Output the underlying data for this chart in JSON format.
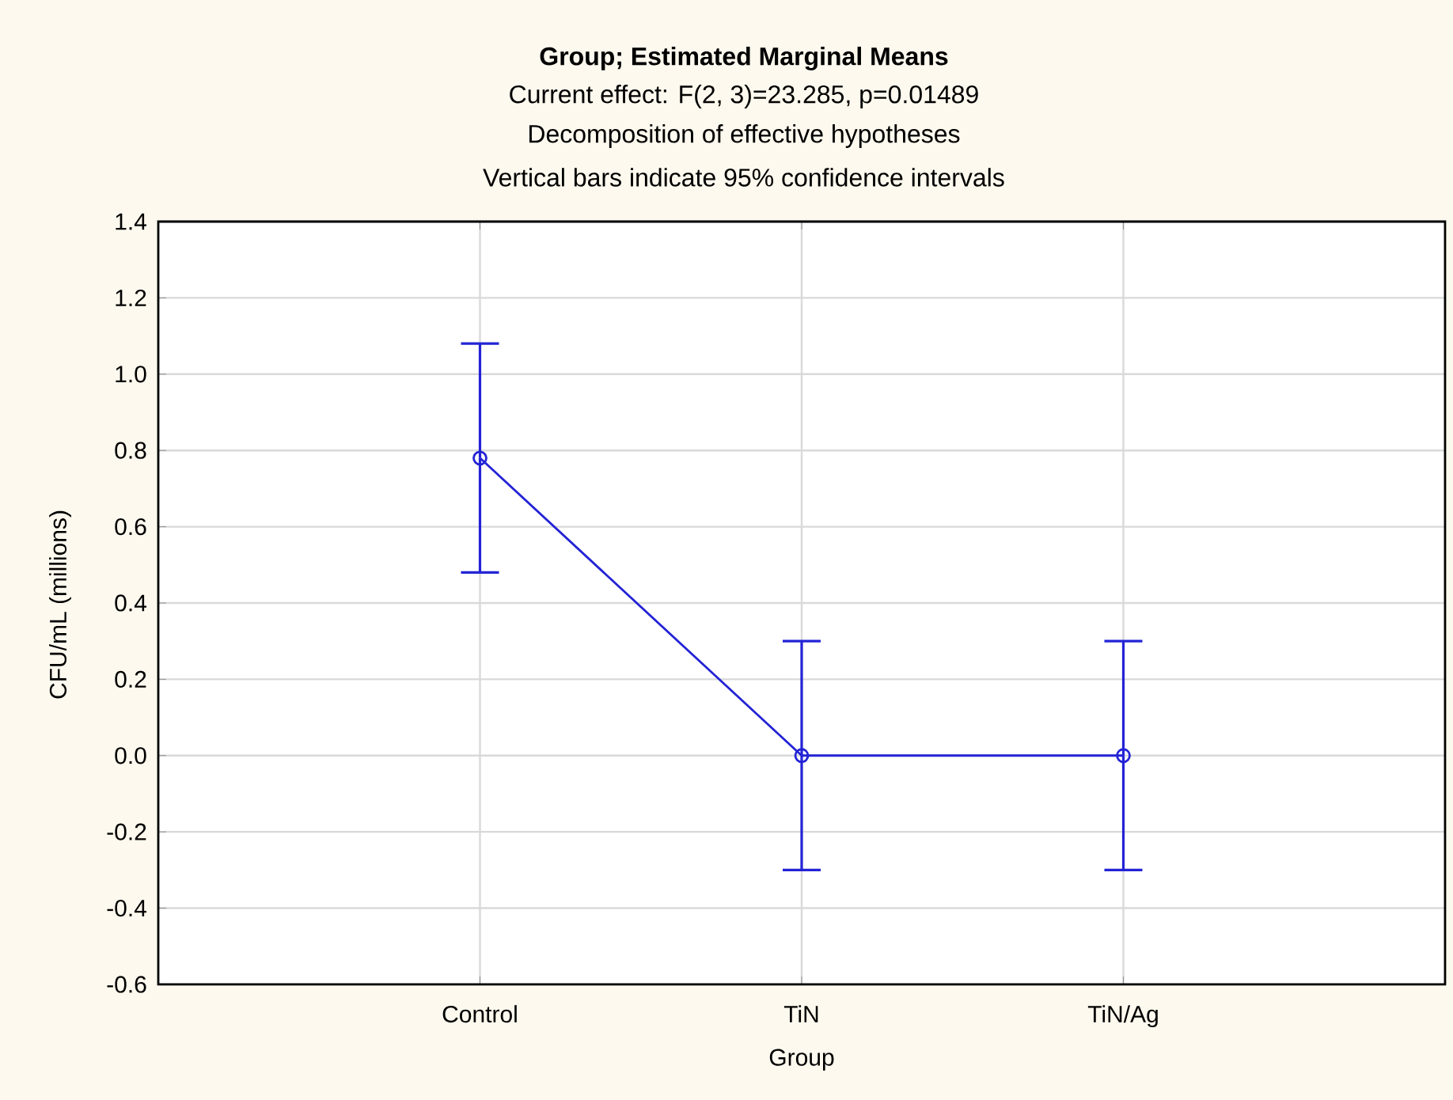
{
  "chart_data": {
    "type": "line",
    "title": "Group; Estimated Marginal Means",
    "subtitle": "Current effect: F(2, 3)=23.285, p=0.01489",
    "annotations": [
      "Decomposition of effective hypotheses",
      "Vertical bars indicate 95% confidence intervals"
    ],
    "xlabel": "Group",
    "ylabel": "CFU/mL (millions)",
    "categories": [
      "Control",
      "TiN",
      "TiN/Ag"
    ],
    "series": [
      {
        "color": "#2323d6",
        "values": [
          0.78,
          0,
          0
        ],
        "errors": [
          0.3,
          0.3,
          0.3
        ]
      }
    ],
    "ylim": [
      -0.6,
      1.4
    ],
    "yticks": [
      {
        "value": -0.6,
        "label": "-0.6"
      },
      {
        "value": -0.4,
        "label": "-0.4"
      },
      {
        "value": -0.2,
        "label": "-0.2"
      },
      {
        "value": 0,
        "label": "0.0"
      },
      {
        "value": 0.2,
        "label": "0.2"
      },
      {
        "value": 0.4,
        "label": "0.4"
      },
      {
        "value": 0.6,
        "label": "0.6"
      },
      {
        "value": 0.8,
        "label": "0.8"
      },
      {
        "value": 1.0,
        "label": "1.0"
      },
      {
        "value": 1.2,
        "label": "1.2"
      },
      {
        "value": 1.4,
        "label": "1.4"
      }
    ],
    "grid": true,
    "marker": "circle",
    "line_style": "solid"
  }
}
